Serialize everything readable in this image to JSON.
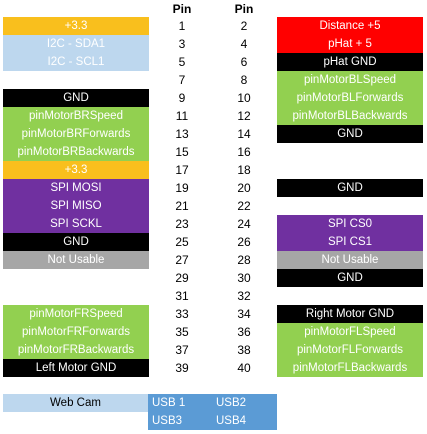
{
  "header": {
    "pin_left": "Pin",
    "pin_right": "Pin"
  },
  "colors": {
    "yellow": "#f9bf1d",
    "light_blue": "#bdd7ee",
    "black": "#000000",
    "green": "#92d050",
    "purple": "#7030a0",
    "gray": "#a6a6a6",
    "red": "#ff0000",
    "blue": "#5b9bd5"
  },
  "rows": [
    {
      "l_num": "1",
      "r_num": "2",
      "left": {
        "text": "+3.3",
        "color": "yellow",
        "fg": "#ffffff"
      },
      "right": {
        "text": "Distance +5",
        "color": "red",
        "fg": "#ffffff"
      }
    },
    {
      "l_num": "3",
      "r_num": "4",
      "left": {
        "text": "I2C - SDA1",
        "color": "light_blue",
        "fg": "#ffffff"
      },
      "right": {
        "text": "pHat + 5",
        "color": "red",
        "fg": "#ffffff"
      }
    },
    {
      "l_num": "5",
      "r_num": "6",
      "left": {
        "text": "I2C - SCL1",
        "color": "light_blue",
        "fg": "#ffffff"
      },
      "right": {
        "text": "pHat GND",
        "color": "black",
        "fg": "#ffffff"
      }
    },
    {
      "l_num": "7",
      "r_num": "8",
      "left": null,
      "right": {
        "text": "pinMotorBLSpeed",
        "color": "green",
        "fg": "#ffffff"
      }
    },
    {
      "l_num": "9",
      "r_num": "10",
      "left": {
        "text": "GND",
        "color": "black",
        "fg": "#ffffff"
      },
      "right": {
        "text": "pinMotorBLForwards",
        "color": "green",
        "fg": "#ffffff"
      }
    },
    {
      "l_num": "11",
      "r_num": "12",
      "left": {
        "text": "pinMotorBRSpeed",
        "color": "green",
        "fg": "#ffffff"
      },
      "right": {
        "text": "pinMotorBLBackwards",
        "color": "green",
        "fg": "#ffffff"
      }
    },
    {
      "l_num": "13",
      "r_num": "14",
      "left": {
        "text": "pinMotorBRForwards",
        "color": "green",
        "fg": "#ffffff"
      },
      "right": {
        "text": "GND",
        "color": "black",
        "fg": "#ffffff"
      }
    },
    {
      "l_num": "15",
      "r_num": "16",
      "left": {
        "text": "pinMotorBRBackwards",
        "color": "green",
        "fg": "#ffffff"
      },
      "right": null
    },
    {
      "l_num": "17",
      "r_num": "18",
      "left": {
        "text": "+3.3",
        "color": "yellow",
        "fg": "#ffffff"
      },
      "right": null
    },
    {
      "l_num": "19",
      "r_num": "20",
      "left": {
        "text": "SPI MOSI",
        "color": "purple",
        "fg": "#ffffff"
      },
      "right": {
        "text": "GND",
        "color": "black",
        "fg": "#ffffff"
      }
    },
    {
      "l_num": "21",
      "r_num": "22",
      "left": {
        "text": "SPI MISO",
        "color": "purple",
        "fg": "#ffffff"
      },
      "right": null
    },
    {
      "l_num": "23",
      "r_num": "24",
      "left": {
        "text": "SPI SCKL",
        "color": "purple",
        "fg": "#ffffff"
      },
      "right": {
        "text": "SPI CS0",
        "color": "purple",
        "fg": "#ffffff"
      }
    },
    {
      "l_num": "25",
      "r_num": "26",
      "left": {
        "text": "GND",
        "color": "black",
        "fg": "#ffffff"
      },
      "right": {
        "text": "SPI CS1",
        "color": "purple",
        "fg": "#ffffff"
      }
    },
    {
      "l_num": "27",
      "r_num": "28",
      "left": {
        "text": "Not Usable",
        "color": "gray",
        "fg": "#ffffff"
      },
      "right": {
        "text": "Not Usable",
        "color": "gray",
        "fg": "#ffffff"
      }
    },
    {
      "l_num": "29",
      "r_num": "30",
      "left": null,
      "right": {
        "text": "GND",
        "color": "black",
        "fg": "#ffffff"
      }
    },
    {
      "l_num": "31",
      "r_num": "32",
      "left": null,
      "right": null
    },
    {
      "l_num": "33",
      "r_num": "34",
      "left": {
        "text": "pinMotorFRSpeed",
        "color": "green",
        "fg": "#ffffff"
      },
      "right": {
        "text": "Right Motor GND",
        "color": "black",
        "fg": "#ffffff"
      }
    },
    {
      "l_num": "35",
      "r_num": "36",
      "left": {
        "text": "pinMotorFRForwards",
        "color": "green",
        "fg": "#ffffff"
      },
      "right": {
        "text": "pinMotorFLSpeed",
        "color": "green",
        "fg": "#ffffff"
      }
    },
    {
      "l_num": "37",
      "r_num": "38",
      "left": {
        "text": "pinMotorFRBackwards",
        "color": "green",
        "fg": "#ffffff"
      },
      "right": {
        "text": "pinMotorFLForwards",
        "color": "green",
        "fg": "#ffffff"
      }
    },
    {
      "l_num": "39",
      "r_num": "40",
      "left": {
        "text": "Left Motor GND",
        "color": "black",
        "fg": "#ffffff"
      },
      "right": {
        "text": "pinMotorFLBackwards",
        "color": "green",
        "fg": "#ffffff"
      }
    }
  ],
  "webcam": {
    "label": "Web Cam",
    "color": "light_blue",
    "fg": "#000000"
  },
  "usb": {
    "usb1": "USB 1",
    "usb2": "USB2",
    "usb3": "USB3",
    "usb4": "USB4"
  }
}
